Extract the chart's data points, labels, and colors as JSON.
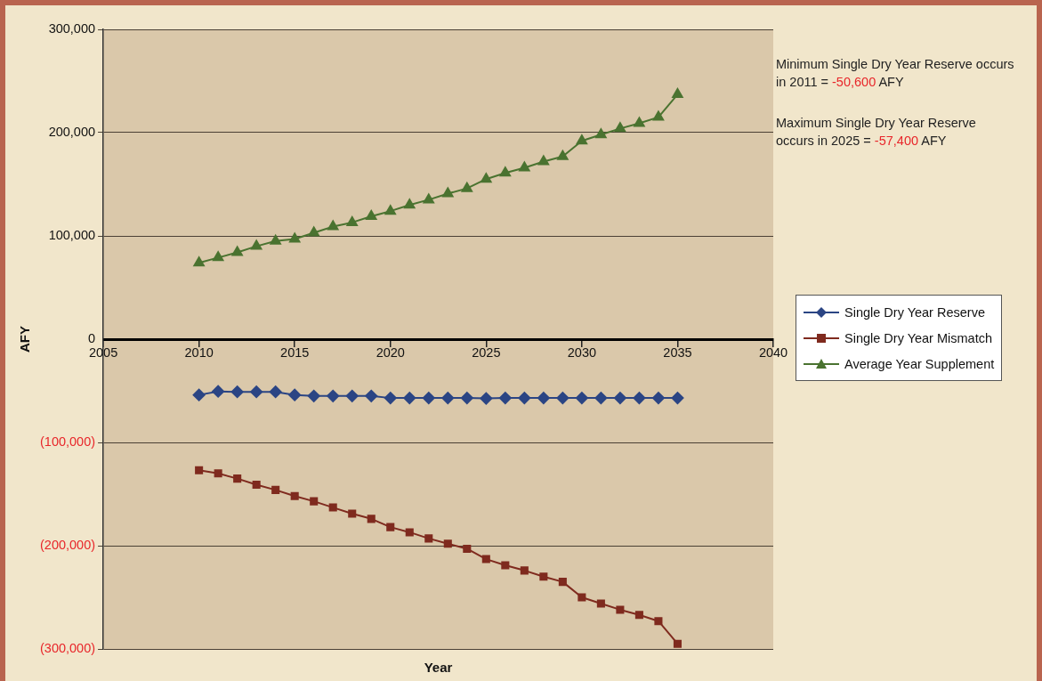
{
  "chart_data": {
    "type": "line",
    "xlabel": "Year",
    "ylabel": "AFY",
    "x": [
      2010,
      2011,
      2012,
      2013,
      2014,
      2015,
      2016,
      2017,
      2018,
      2019,
      2020,
      2021,
      2022,
      2023,
      2024,
      2025,
      2026,
      2027,
      2028,
      2029,
      2030,
      2031,
      2032,
      2033,
      2034,
      2035
    ],
    "series": [
      {
        "name": "Single Dry Year Reserve",
        "color": "#2b4584",
        "marker": "diamond",
        "values": [
          -54000,
          -50600,
          -51000,
          -51000,
          -51000,
          -54000,
          -55000,
          -55000,
          -55000,
          -55000,
          -57000,
          -57000,
          -57000,
          -57000,
          -57000,
          -57400,
          -57000,
          -57000,
          -57000,
          -57000,
          -57000,
          -57000,
          -57000,
          -57000,
          -57000,
          -57000
        ]
      },
      {
        "name": "Single Dry Year Mismatch",
        "color": "#7f2a1e",
        "marker": "square",
        "values": [
          -127000,
          -130000,
          -135000,
          -141000,
          -146000,
          -152000,
          -157000,
          -163000,
          -169000,
          -174000,
          -182000,
          -187000,
          -193000,
          -198000,
          -203000,
          -213000,
          -219000,
          -224000,
          -230000,
          -235000,
          -250000,
          -256000,
          -262000,
          -267000,
          -273000,
          -295000
        ]
      },
      {
        "name": "Average Year Supplement",
        "color": "#4a7330",
        "marker": "triangle",
        "values": [
          74000,
          79000,
          84000,
          90000,
          95000,
          97000,
          103000,
          109000,
          113000,
          119000,
          124000,
          130000,
          135000,
          141000,
          146000,
          155000,
          161000,
          166000,
          172000,
          177000,
          192000,
          198000,
          204000,
          209000,
          215000,
          237000
        ]
      }
    ],
    "xlim": [
      2005,
      2040
    ],
    "xticks": [
      2005,
      2010,
      2015,
      2020,
      2025,
      2030,
      2035,
      2040
    ],
    "ylim": [
      -300000,
      300000
    ],
    "yticks": [
      {
        "value": -300000,
        "label": "(300,000)"
      },
      {
        "value": -200000,
        "label": "(200,000)"
      },
      {
        "value": -100000,
        "label": "(100,000)"
      },
      {
        "value": 0,
        "label": "0"
      },
      {
        "value": 100000,
        "label": "100,000"
      },
      {
        "value": 200000,
        "label": "200,000"
      },
      {
        "value": 300000,
        "label": "300,000"
      }
    ],
    "grid": "y",
    "legend": "right",
    "line_style": "solid",
    "annotations": [
      "Minimum Single Dry Year Reserve occurs in 2011 = -50,600 AFY",
      "Maximum Single Dry Year Reserve occurs in 2025 = -57,400 AFY"
    ]
  }
}
